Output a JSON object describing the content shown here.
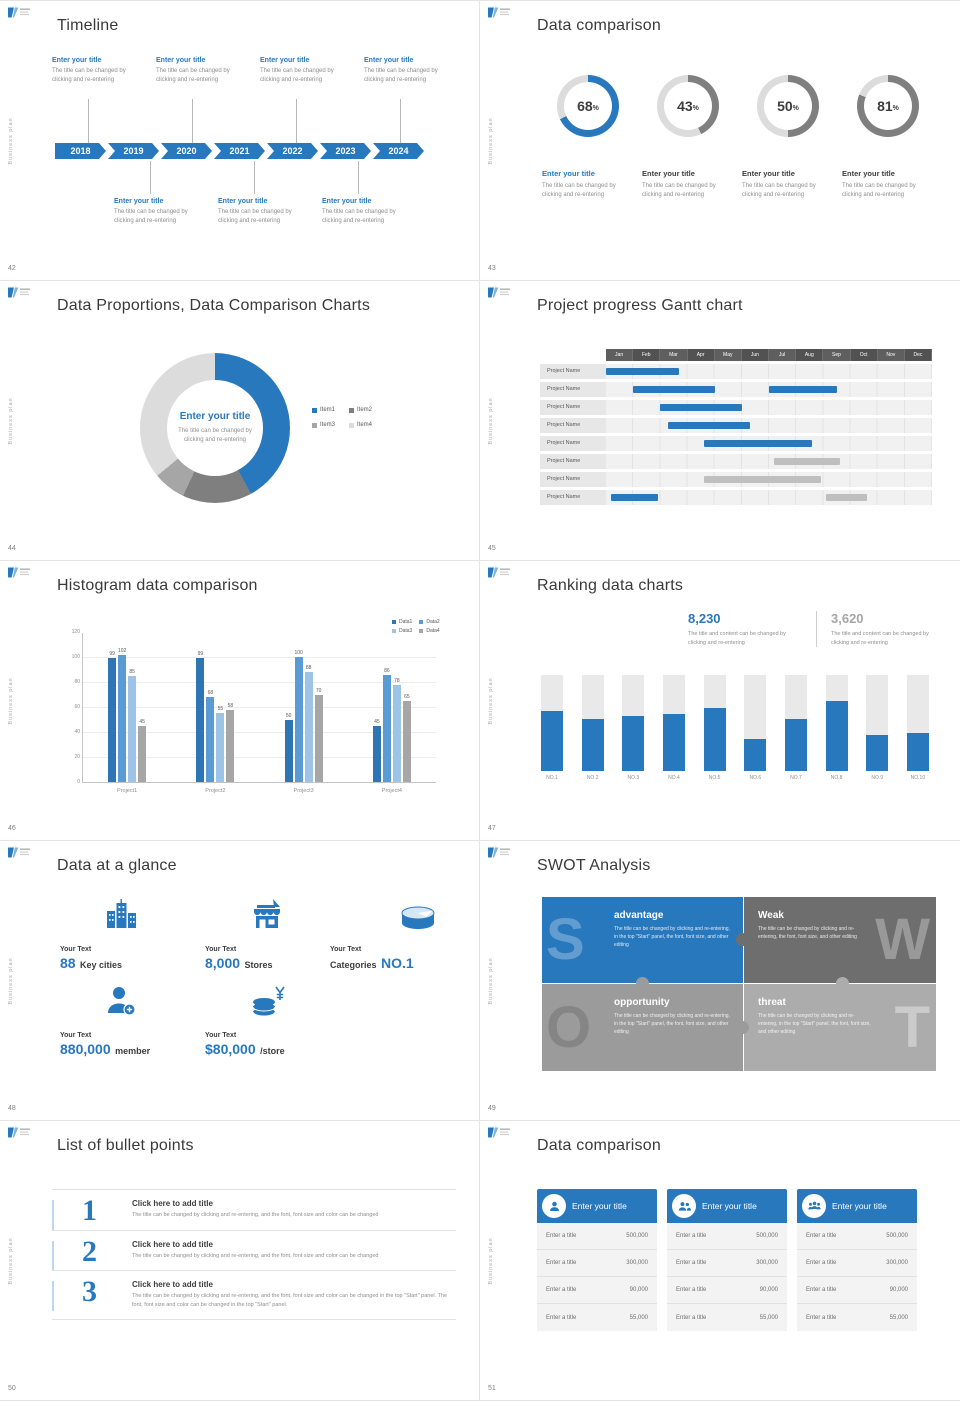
{
  "common": {
    "side_text": "Business plan",
    "accent": "#2878BE",
    "track_color": "#DCDCDC",
    "gray_bar": "#BFBFBF"
  },
  "slides": {
    "timeline": {
      "number": "42",
      "title": "Timeline",
      "years": [
        "2018",
        "2019",
        "2020",
        "2021",
        "2022",
        "2023",
        "2024"
      ],
      "entry_title": "Enter your title",
      "entry_body": "The title can be changed by clicking and re-entering"
    },
    "rings": {
      "number": "43",
      "title": "Data comparison",
      "items": [
        {
          "percent": 68,
          "color": "#2878BE",
          "label": "Enter your title",
          "label_color": "#2878BE",
          "body": "The title can be changed by clicking and re-entering"
        },
        {
          "percent": 43,
          "color": "#7F7F7F",
          "label": "Enter your title",
          "label_color": "#3D3D3D",
          "body": "The title can be changed by clicking and re-entering"
        },
        {
          "percent": 50,
          "color": "#7F7F7F",
          "label": "Enter your title",
          "label_color": "#3D3D3D",
          "body": "The title can be changed by clicking and re-entering"
        },
        {
          "percent": 81,
          "color": "#7F7F7F",
          "label": "Enter your title",
          "label_color": "#3D3D3D",
          "body": "The title can be changed by clicking and re-entering"
        }
      ]
    },
    "proportions": {
      "number": "44",
      "title": "Data Proportions, Data Comparison Charts",
      "center_title": "Enter your title",
      "center_body": "The title can be changed by clicking and re-entering",
      "segments": [
        {
          "name": "Item1",
          "value": 42,
          "color": "#2878BE"
        },
        {
          "name": "Item2",
          "value": 15,
          "color": "#7F7F7F"
        },
        {
          "name": "Item3",
          "value": 7,
          "color": "#A6A6A6"
        },
        {
          "name": "Item4",
          "value": 36,
          "color": "#DCDCDC"
        }
      ]
    },
    "gantt": {
      "number": "45",
      "title": "Project progress Gantt chart",
      "months": [
        "Jan",
        "Feb",
        "Mar",
        "Apr",
        "May",
        "Jun",
        "Jul",
        "Aug",
        "Sep",
        "Oct",
        "Nov",
        "Dec"
      ],
      "row_label": "Project Name",
      "rows": [
        {
          "bars": [
            {
              "start": 0,
              "end": 2.7,
              "color": "blue"
            }
          ]
        },
        {
          "bars": [
            {
              "start": 1,
              "end": 4,
              "color": "blue"
            },
            {
              "start": 6,
              "end": 8.5,
              "color": "blue"
            }
          ]
        },
        {
          "bars": [
            {
              "start": 2,
              "end": 5,
              "color": "blue"
            }
          ]
        },
        {
          "bars": [
            {
              "start": 2.3,
              "end": 5.3,
              "color": "blue"
            }
          ]
        },
        {
          "bars": [
            {
              "start": 3.6,
              "end": 7.6,
              "color": "blue"
            }
          ]
        },
        {
          "bars": [
            {
              "start": 6.2,
              "end": 8.6,
              "color": "gray"
            }
          ]
        },
        {
          "bars": [
            {
              "start": 3.6,
              "end": 7.9,
              "color": "gray"
            }
          ]
        },
        {
          "bars": [
            {
              "start": 0.2,
              "end": 1.9,
              "color": "blue"
            },
            {
              "start": 8.1,
              "end": 9.6,
              "color": "gray"
            }
          ]
        }
      ]
    },
    "histogram": {
      "number": "46",
      "title": "Histogram data comparison",
      "categories": [
        "Project1",
        "Project2",
        "Project3",
        "Project4"
      ],
      "y_ticks": [
        0,
        20,
        40,
        60,
        80,
        100,
        120
      ],
      "y_max": 120,
      "series": [
        {
          "name": "Data1",
          "color": "#2E75B6",
          "values": [
            99,
            99,
            50,
            45
          ]
        },
        {
          "name": "Data2",
          "color": "#5B9BD5",
          "values": [
            102,
            68,
            100,
            86
          ]
        },
        {
          "name": "Data3",
          "color": "#9DC3E6",
          "values": [
            85,
            55,
            88,
            78
          ]
        },
        {
          "name": "Data4",
          "color": "#A6A6A6",
          "values": [
            45,
            58,
            70,
            65
          ]
        }
      ]
    },
    "ranking": {
      "number": "47",
      "title": "Ranking data charts",
      "stats": [
        {
          "value": "8,230",
          "body": "The title and content can be changed by clicking and re-entering"
        },
        {
          "value": "3,620",
          "body": "The title and content can be changed by clicking and re-entering"
        }
      ],
      "bars": {
        "labels": [
          "NO.1",
          "NO.2",
          "NO.3",
          "NO.4",
          "NO.5",
          "NO.6",
          "NO.7",
          "NO.8",
          "NO.9",
          "NO.10"
        ],
        "values": [
          62,
          54,
          57,
          59,
          66,
          33,
          54,
          73,
          38,
          40
        ]
      }
    },
    "glance": {
      "number": "48",
      "title": "Data at a glance",
      "items": [
        {
          "label": "Your Text",
          "big": "88",
          "small": "Key cities",
          "icon": "city"
        },
        {
          "label": "Your Text",
          "big": "8,000",
          "small": "Stores",
          "icon": "store"
        },
        {
          "label": "Your Text",
          "big": "NO.1",
          "small": "Categories",
          "icon": "categories"
        },
        {
          "label": "Your Text",
          "big": "880,000",
          "small": "member",
          "icon": "member"
        },
        {
          "label": "Your Text",
          "big": "$80,000",
          "small": "/store",
          "icon": "money"
        }
      ]
    },
    "swot": {
      "number": "49",
      "title": "SWOT Analysis",
      "quadrants": [
        {
          "letter": "S",
          "heading": "advantage",
          "color": "#2878BE",
          "body": "The title can be changed by clicking and re-entering, in the top \"Start\" panel, the font, font size, and other editing"
        },
        {
          "letter": "W",
          "heading": "Weak",
          "color": "#6E6E6E",
          "body": "The title can be changed by clicking and re-entering, the font, font size, and other editing"
        },
        {
          "letter": "O",
          "heading": "opportunity",
          "color": "#9B9B9B",
          "body": "The title can be changed by clicking and re-entering, in the top \"Start\" panel, the font, font size, and other editing"
        },
        {
          "letter": "T",
          "heading": "threat",
          "color": "#ACACAC",
          "body": "The title can be changed by clicking and re-entering, in the top \"Start\" panel, the font, font size, and other editing"
        }
      ]
    },
    "bullets": {
      "number": "50",
      "title": "List of bullet points",
      "items": [
        {
          "num": "1",
          "heading": "Click here to add title",
          "body": "The title can be changed by clicking and re-entering, and the font, font size and color can be changed"
        },
        {
          "num": "2",
          "heading": "Click here to add title",
          "body": "The title can be changed by clicking and re-entering, and the font, font size and color can be changed"
        },
        {
          "num": "3",
          "heading": "Click here to add title",
          "body": "The title can be changed by clicking and re-entering, and the font, font size and color can be changed in the top \"Start\" panel. The font, font size and color can be changed in the top \"Start\" panel."
        }
      ]
    },
    "cards": {
      "number": "51",
      "title": "Data comparison",
      "cards": [
        {
          "title": "Enter your title",
          "icon": "person",
          "rows": [
            [
              "Enter a title",
              "500,000"
            ],
            [
              "Enter a title",
              "300,000"
            ],
            [
              "Enter a title",
              "90,000"
            ],
            [
              "Enter a title",
              "55,000"
            ]
          ]
        },
        {
          "title": "Enter your title",
          "icon": "people",
          "rows": [
            [
              "Enter a title",
              "500,000"
            ],
            [
              "Enter a title",
              "300,000"
            ],
            [
              "Enter a title",
              "90,000"
            ],
            [
              "Enter a title",
              "55,000"
            ]
          ]
        },
        {
          "title": "Enter your title",
          "icon": "team",
          "rows": [
            [
              "Enter a title",
              "500,000"
            ],
            [
              "Enter a title",
              "300,000"
            ],
            [
              "Enter a title",
              "90,000"
            ],
            [
              "Enter a title",
              "55,000"
            ]
          ]
        }
      ]
    }
  }
}
